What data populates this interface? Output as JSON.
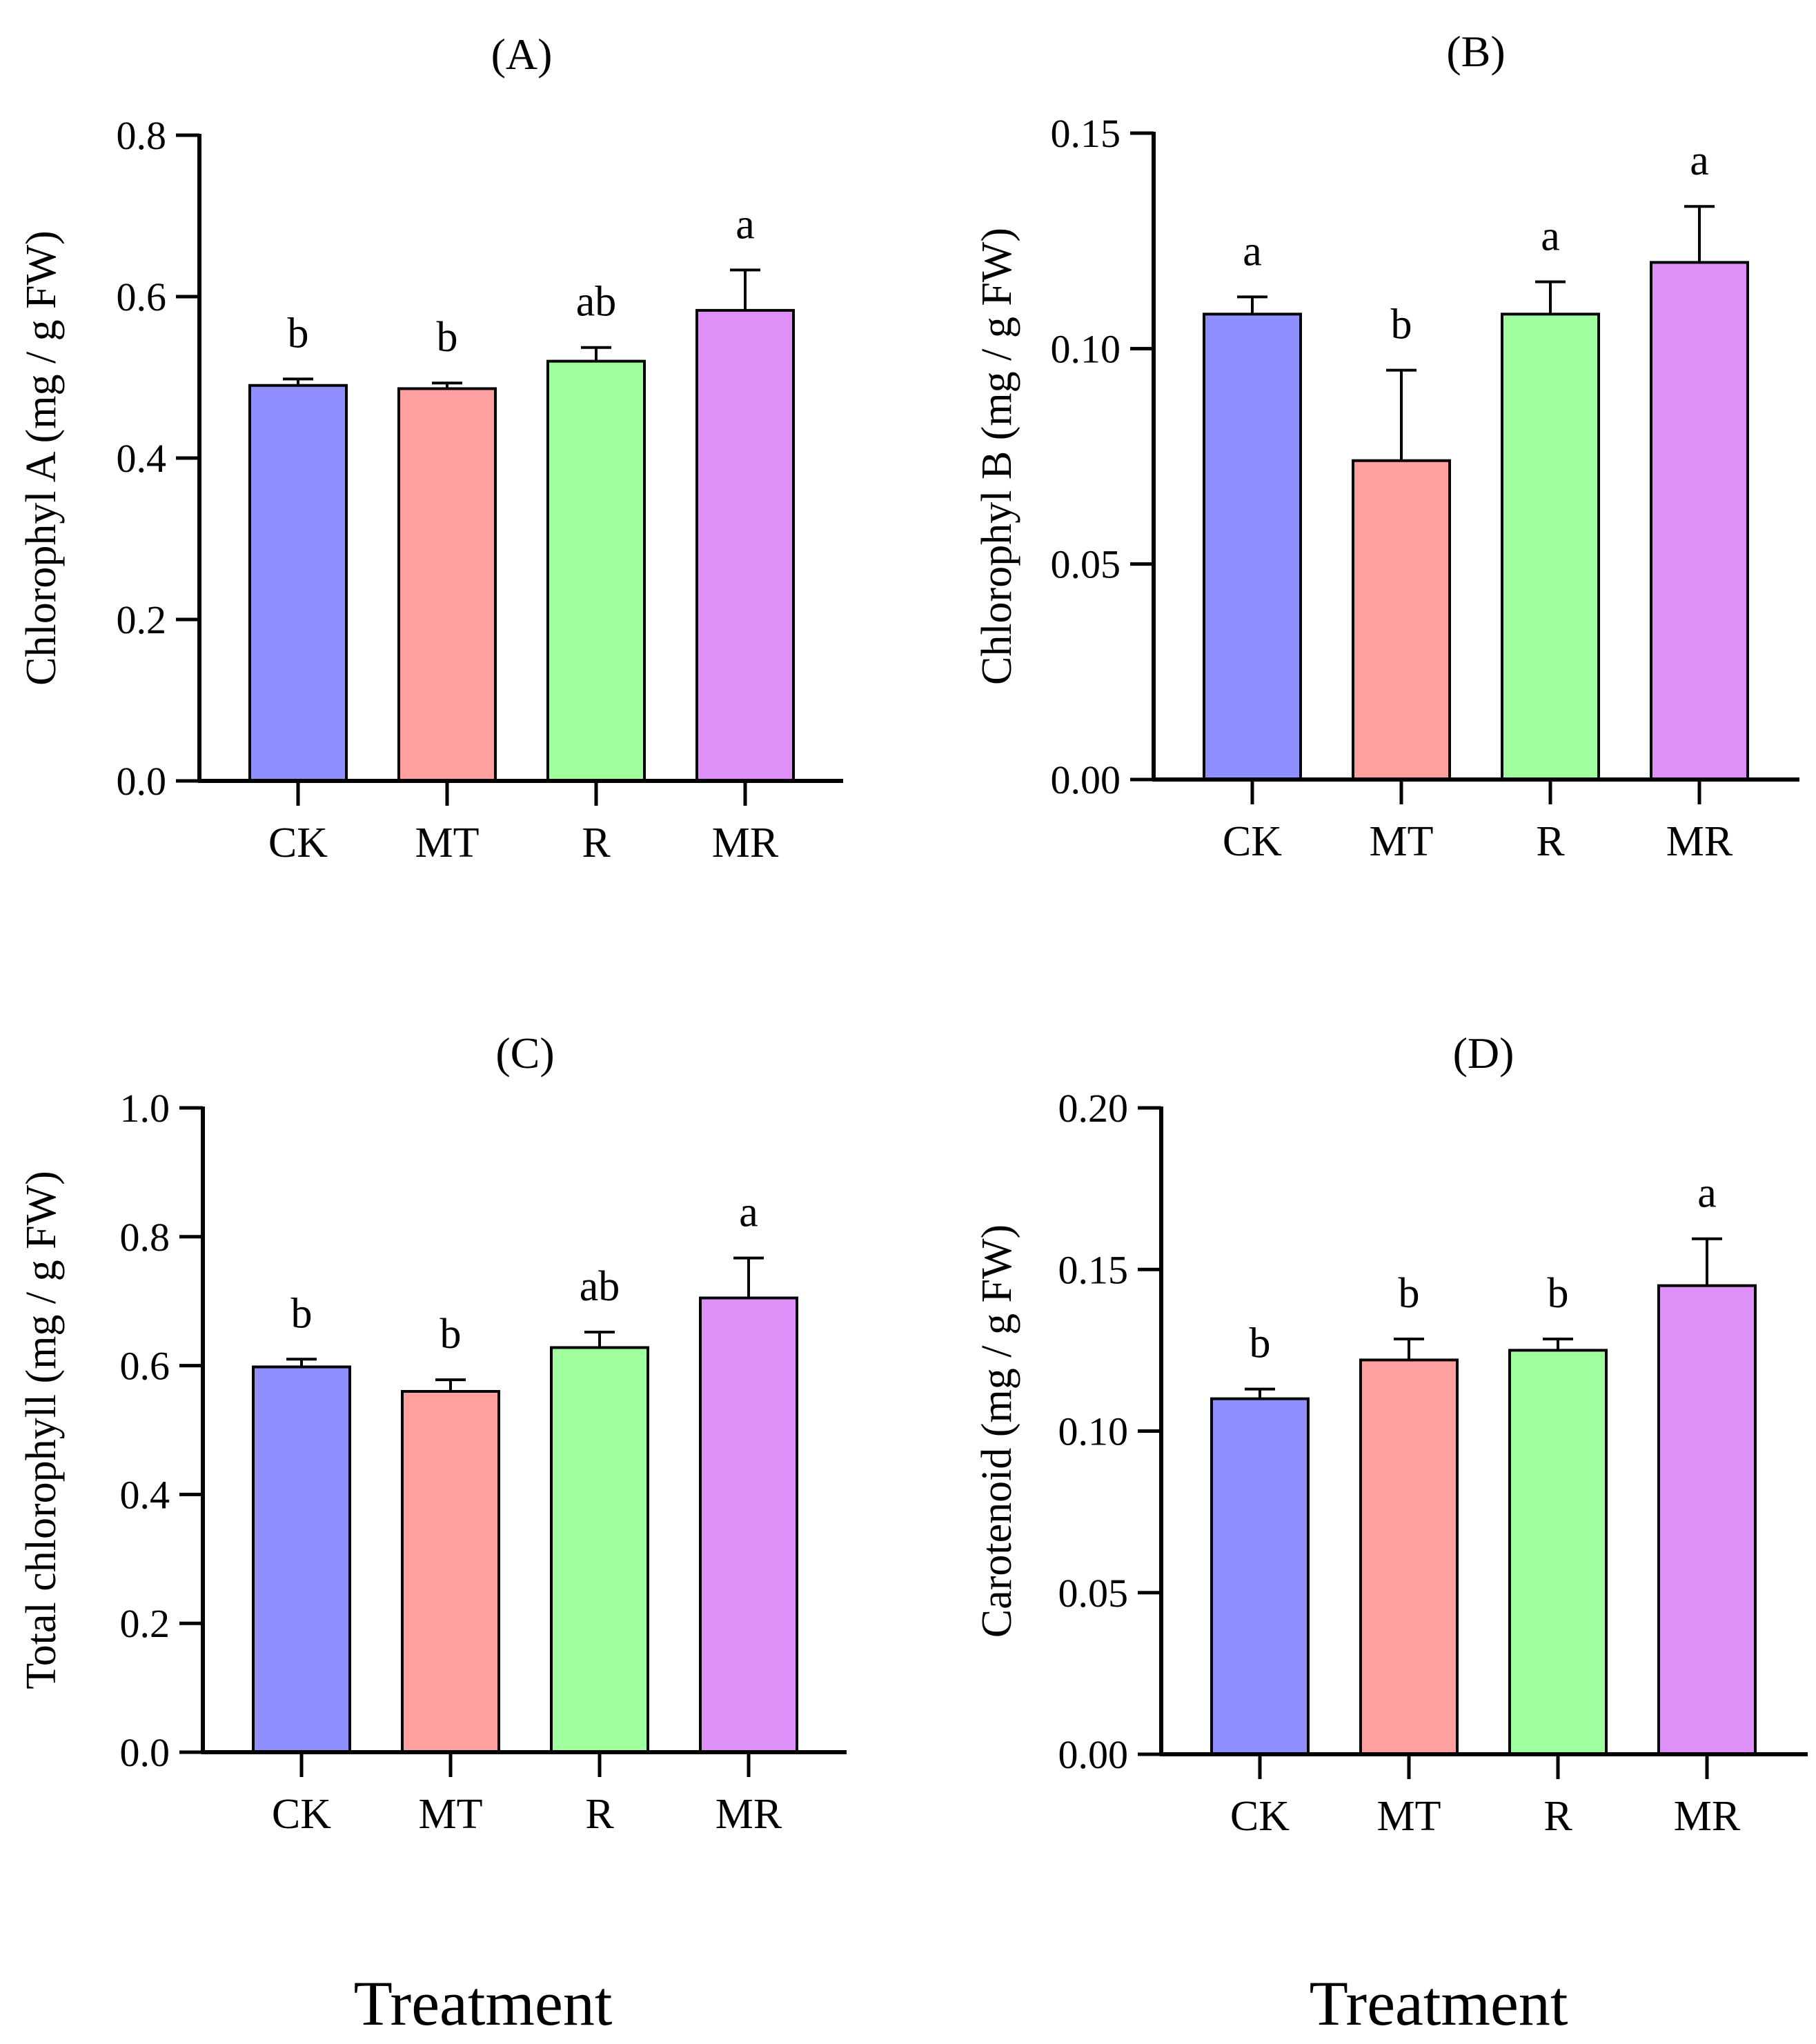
{
  "figure": {
    "xlabel_left": "Treatment",
    "xlabel_right": "Treatment"
  },
  "chart_data": [
    {
      "type": "bar",
      "panel": "(A)",
      "title": "(A)",
      "ylabel": "Chlorophyl A (mg / g FW)",
      "xlabel": "",
      "categories": [
        "CK",
        "MT",
        "R",
        "MR"
      ],
      "values": [
        0.49,
        0.486,
        0.52,
        0.583
      ],
      "errors": [
        0.008,
        0.007,
        0.017,
        0.05
      ],
      "significance": [
        "b",
        "b",
        "ab",
        "a"
      ],
      "ylim": [
        0,
        0.8
      ],
      "yticks": [
        "0.0",
        "0.2",
        "0.4",
        "0.6",
        "0.8"
      ],
      "ytick_values": [
        0,
        0.2,
        0.4,
        0.6,
        0.8
      ],
      "colors": [
        "#8f8fff",
        "#ff9f9f",
        "#9fff9f",
        "#df8ff8"
      ]
    },
    {
      "type": "bar",
      "panel": "(B)",
      "title": "(B)",
      "ylabel": "Chlorophyl B (mg / g FW)",
      "xlabel": "",
      "categories": [
        "CK",
        "MT",
        "R",
        "MR"
      ],
      "values": [
        0.108,
        0.074,
        0.108,
        0.12
      ],
      "errors": [
        0.004,
        0.021,
        0.0075,
        0.013
      ],
      "significance": [
        "a",
        "b",
        "a",
        "a"
      ],
      "ylim": [
        0,
        0.15
      ],
      "yticks": [
        "0.00",
        "0.05",
        "0.10",
        "0.15"
      ],
      "ytick_values": [
        0,
        0.05,
        0.1,
        0.15
      ],
      "colors": [
        "#8f8fff",
        "#ff9f9f",
        "#9fff9f",
        "#df8ff8"
      ]
    },
    {
      "type": "bar",
      "panel": "(C)",
      "title": "(C)",
      "ylabel": "Total chlorophyll (mg / g FW)",
      "xlabel": "",
      "categories": [
        "CK",
        "MT",
        "R",
        "MR"
      ],
      "values": [
        0.598,
        0.56,
        0.628,
        0.705
      ],
      "errors": [
        0.012,
        0.018,
        0.024,
        0.062
      ],
      "significance": [
        "b",
        "b",
        "ab",
        "a"
      ],
      "ylim": [
        0,
        1.0
      ],
      "yticks": [
        "0.0",
        "0.2",
        "0.4",
        "0.6",
        "0.8",
        "1.0"
      ],
      "ytick_values": [
        0,
        0.2,
        0.4,
        0.6,
        0.8,
        1.0
      ],
      "colors": [
        "#8f8fff",
        "#ff9f9f",
        "#9fff9f",
        "#df8ff8"
      ]
    },
    {
      "type": "bar",
      "panel": "(D)",
      "title": "(D)",
      "ylabel": "Carotenoid (mg / g FW)",
      "xlabel": "",
      "categories": [
        "CK",
        "MT",
        "R",
        "MR"
      ],
      "values": [
        0.11,
        0.122,
        0.125,
        0.145
      ],
      "errors": [
        0.003,
        0.0065,
        0.0035,
        0.0145
      ],
      "significance": [
        "b",
        "b",
        "b",
        "a"
      ],
      "ylim": [
        0,
        0.2
      ],
      "yticks": [
        "0.00",
        "0.05",
        "0.10",
        "0.15",
        "0.20"
      ],
      "ytick_values": [
        0,
        0.05,
        0.1,
        0.15,
        0.2
      ],
      "colors": [
        "#8f8fff",
        "#ff9f9f",
        "#9fff9f",
        "#df8ff8"
      ]
    }
  ]
}
